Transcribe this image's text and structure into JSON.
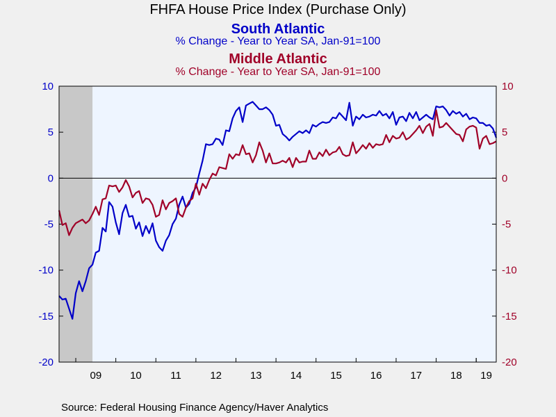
{
  "title": "FHFA House Price Index (Purchase Only)",
  "source": "Source:  Federal Housing Finance Agency/Haver Analytics",
  "chart_data": {
    "type": "line",
    "title": "FHFA House Price Index (Purchase Only)",
    "ylim": [
      -20,
      10
    ],
    "yticks": [
      10,
      5,
      0,
      -5,
      -10,
      -15,
      -20
    ],
    "y2ticks": [
      10,
      5,
      0,
      -5,
      -10,
      -15,
      -20
    ],
    "xlim": [
      2008.583,
      2019.5
    ],
    "xticks": [
      "09",
      "10",
      "11",
      "12",
      "13",
      "14",
      "15",
      "16",
      "17",
      "18",
      "19"
    ],
    "recession_shade": [
      2008.583,
      2009.417
    ],
    "zero_line": true,
    "grid": false,
    "colors": {
      "plot_bg": "#eef5ff",
      "shade": "#c8c8c8"
    },
    "series": [
      {
        "name": "South Atlantic",
        "subtitle": "% Change - Year to Year    SA, Jan-91=100",
        "axis": "left",
        "color": "#0000c8",
        "x": [
          2008.583,
          2008.667,
          2008.75,
          2008.833,
          2008.917,
          2009.0,
          2009.083,
          2009.167,
          2009.25,
          2009.333,
          2009.417,
          2009.5,
          2009.583,
          2009.667,
          2009.75,
          2009.833,
          2009.917,
          2010.0,
          2010.083,
          2010.167,
          2010.25,
          2010.333,
          2010.417,
          2010.5,
          2010.583,
          2010.667,
          2010.75,
          2010.833,
          2010.917,
          2011.0,
          2011.083,
          2011.167,
          2011.25,
          2011.333,
          2011.417,
          2011.5,
          2011.583,
          2011.667,
          2011.75,
          2011.833,
          2011.917,
          2012.0,
          2012.083,
          2012.167,
          2012.25,
          2012.333,
          2012.417,
          2012.5,
          2012.583,
          2012.667,
          2012.75,
          2012.833,
          2012.917,
          2013.0,
          2013.083,
          2013.167,
          2013.25,
          2013.333,
          2013.417,
          2013.5,
          2013.583,
          2013.667,
          2013.75,
          2013.833,
          2013.917,
          2014.0,
          2014.083,
          2014.167,
          2014.25,
          2014.333,
          2014.417,
          2014.5,
          2014.583,
          2014.667,
          2014.75,
          2014.833,
          2014.917,
          2015.0,
          2015.083,
          2015.167,
          2015.25,
          2015.333,
          2015.417,
          2015.5,
          2015.583,
          2015.667,
          2015.75,
          2015.833,
          2015.917,
          2016.0,
          2016.083,
          2016.167,
          2016.25,
          2016.333,
          2016.417,
          2016.5,
          2016.583,
          2016.667,
          2016.75,
          2016.833,
          2016.917,
          2017.0,
          2017.083,
          2017.167,
          2017.25,
          2017.333,
          2017.417,
          2017.5,
          2017.583,
          2017.667,
          2017.75,
          2017.833,
          2017.917,
          2018.0,
          2018.083,
          2018.167,
          2018.25,
          2018.333,
          2018.417,
          2018.5,
          2018.583,
          2018.667,
          2018.75,
          2018.833,
          2018.917,
          2019.0,
          2019.083,
          2019.167,
          2019.25,
          2019.333,
          2019.417,
          2019.5
        ],
        "values": [
          -12.8,
          -13.2,
          -13.1,
          -14.2,
          -15.3,
          -12.5,
          -11.2,
          -12.3,
          -11.2,
          -9.8,
          -9.4,
          -8.1,
          -7.9,
          -5.4,
          -5.8,
          -2.6,
          -3.1,
          -4.8,
          -6.1,
          -3.8,
          -2.9,
          -4.2,
          -4.1,
          -5.5,
          -4.8,
          -6.3,
          -5.2,
          -6.0,
          -4.9,
          -6.8,
          -7.5,
          -7.9,
          -6.8,
          -6.2,
          -5.0,
          -4.4,
          -2.9,
          -2.0,
          -3.2,
          -2.8,
          -1.6,
          -1.0,
          0.5,
          1.9,
          3.7,
          3.6,
          3.7,
          4.3,
          4.2,
          3.6,
          5.2,
          5.1,
          6.5,
          7.3,
          7.7,
          6.1,
          7.9,
          8.1,
          8.3,
          7.9,
          7.5,
          7.5,
          7.7,
          7.4,
          6.9,
          5.7,
          5.8,
          4.8,
          4.5,
          4.1,
          4.5,
          4.8,
          5.1,
          4.9,
          5.2,
          4.9,
          5.8,
          5.6,
          5.9,
          6.1,
          6.0,
          6.1,
          6.6,
          6.5,
          7.1,
          6.7,
          6.3,
          8.2,
          5.7,
          6.7,
          6.4,
          6.9,
          6.6,
          6.7,
          6.9,
          6.8,
          7.3,
          6.8,
          7.0,
          6.5,
          7.2,
          5.8,
          6.6,
          6.7,
          6.2,
          7.1,
          6.5,
          7.2,
          6.3,
          6.6,
          6.9,
          6.6,
          6.4,
          7.8,
          7.7,
          7.8,
          7.4,
          6.8,
          7.3,
          7.0,
          7.2,
          6.7,
          7.0,
          6.4,
          6.6,
          6.5,
          6.0,
          6.0,
          5.7,
          5.8,
          5.4,
          4.4
        ]
      },
      {
        "name": "Middle Atlantic",
        "subtitle": "% Change - Year to Year    SA, Jan-91=100",
        "axis": "right",
        "color": "#a00028",
        "x": [
          2008.583,
          2008.667,
          2008.75,
          2008.833,
          2008.917,
          2009.0,
          2009.083,
          2009.167,
          2009.25,
          2009.333,
          2009.417,
          2009.5,
          2009.583,
          2009.667,
          2009.75,
          2009.833,
          2009.917,
          2010.0,
          2010.083,
          2010.167,
          2010.25,
          2010.333,
          2010.417,
          2010.5,
          2010.583,
          2010.667,
          2010.75,
          2010.833,
          2010.917,
          2011.0,
          2011.083,
          2011.167,
          2011.25,
          2011.333,
          2011.417,
          2011.5,
          2011.583,
          2011.667,
          2011.75,
          2011.833,
          2011.917,
          2012.0,
          2012.083,
          2012.167,
          2012.25,
          2012.333,
          2012.417,
          2012.5,
          2012.583,
          2012.667,
          2012.75,
          2012.833,
          2012.917,
          2013.0,
          2013.083,
          2013.167,
          2013.25,
          2013.333,
          2013.417,
          2013.5,
          2013.583,
          2013.667,
          2013.75,
          2013.833,
          2013.917,
          2014.0,
          2014.083,
          2014.167,
          2014.25,
          2014.333,
          2014.417,
          2014.5,
          2014.583,
          2014.667,
          2014.75,
          2014.833,
          2014.917,
          2015.0,
          2015.083,
          2015.167,
          2015.25,
          2015.333,
          2015.417,
          2015.5,
          2015.583,
          2015.667,
          2015.75,
          2015.833,
          2015.917,
          2016.0,
          2016.083,
          2016.167,
          2016.25,
          2016.333,
          2016.417,
          2016.5,
          2016.583,
          2016.667,
          2016.75,
          2016.833,
          2016.917,
          2017.0,
          2017.083,
          2017.167,
          2017.25,
          2017.333,
          2017.417,
          2017.5,
          2017.583,
          2017.667,
          2017.75,
          2017.833,
          2017.917,
          2018.0,
          2018.083,
          2018.167,
          2018.25,
          2018.333,
          2018.417,
          2018.5,
          2018.583,
          2018.667,
          2018.75,
          2018.833,
          2018.917,
          2019.0,
          2019.083,
          2019.167,
          2019.25,
          2019.333,
          2019.417,
          2019.5
        ],
        "values": [
          -3.5,
          -5.1,
          -4.9,
          -6.2,
          -5.4,
          -4.9,
          -4.7,
          -4.5,
          -4.9,
          -4.6,
          -3.9,
          -3.1,
          -4.0,
          -2.3,
          -2.2,
          -0.8,
          -0.9,
          -0.8,
          -1.5,
          -1.0,
          -0.2,
          -0.9,
          -2.1,
          -1.6,
          -1.4,
          -2.7,
          -2.2,
          -2.3,
          -2.9,
          -4.2,
          -4.0,
          -2.4,
          -3.4,
          -2.7,
          -2.5,
          -2.2,
          -3.9,
          -4.2,
          -3.2,
          -2.5,
          -2.2,
          -0.6,
          -1.8,
          -0.6,
          -1.1,
          -0.2,
          0.5,
          0.3,
          1.2,
          1.1,
          1.0,
          2.6,
          2.1,
          2.6,
          2.5,
          3.6,
          2.6,
          2.7,
          1.7,
          2.5,
          3.9,
          3.0,
          1.7,
          2.7,
          1.6,
          1.6,
          1.7,
          1.9,
          1.7,
          2.2,
          1.2,
          2.2,
          1.7,
          1.8,
          1.8,
          3.0,
          2.1,
          2.1,
          2.8,
          2.4,
          3.1,
          2.5,
          2.8,
          2.9,
          3.4,
          2.6,
          2.4,
          2.5,
          3.9,
          2.7,
          3.1,
          3.6,
          3.2,
          3.8,
          3.3,
          3.7,
          3.6,
          3.7,
          4.7,
          3.9,
          4.6,
          4.3,
          4.4,
          5.0,
          4.2,
          4.4,
          4.8,
          5.2,
          5.7,
          4.9,
          5.6,
          5.9,
          4.6,
          7.4,
          5.5,
          5.6,
          6.0,
          5.6,
          5.2,
          4.8,
          4.7,
          4.0,
          5.3,
          5.6,
          5.7,
          5.5,
          3.2,
          4.3,
          4.6,
          3.7,
          3.8,
          4.0
        ]
      }
    ]
  }
}
